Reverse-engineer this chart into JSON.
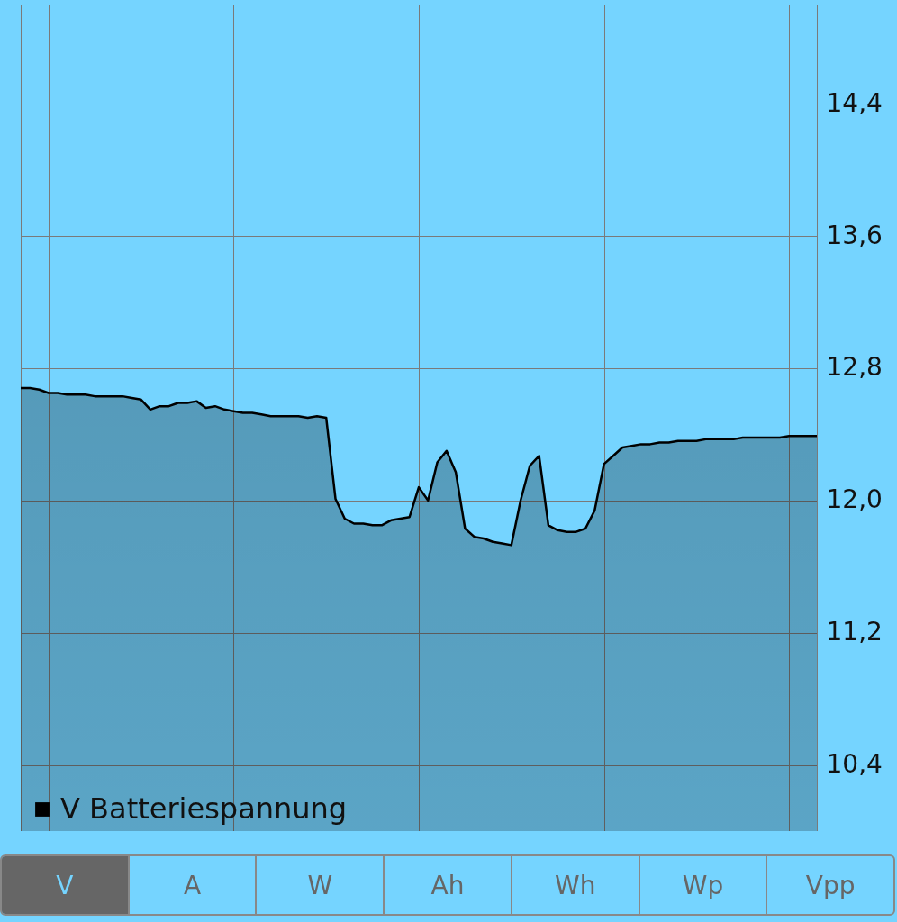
{
  "chart_data": {
    "type": "area",
    "categories": [
      null,
      null,
      null,
      null,
      null,
      null,
      null,
      null,
      null,
      null,
      null,
      null,
      null,
      null,
      null,
      null,
      null,
      null,
      null,
      null,
      null,
      null,
      null,
      null,
      null,
      null,
      null,
      null,
      null,
      null,
      null,
      null,
      null,
      null,
      null,
      null,
      null,
      null,
      null,
      null,
      null,
      null,
      null,
      null,
      null,
      null,
      null,
      null,
      null,
      null,
      null,
      null,
      null,
      null,
      null,
      null,
      null,
      null,
      null,
      null,
      null,
      null,
      null,
      null,
      null,
      null,
      null,
      null,
      null,
      null,
      null,
      null,
      null,
      null,
      null,
      null,
      null,
      null,
      null,
      null,
      null,
      null,
      null,
      null,
      null,
      null,
      null
    ],
    "ylim": [
      10,
      15
    ],
    "yticks": [
      {
        "value": 10.4,
        "label": "10,4"
      },
      {
        "value": 11.2,
        "label": "11,2"
      },
      {
        "value": 12.0,
        "label": "12,0"
      },
      {
        "value": 12.8,
        "label": "12,8"
      },
      {
        "value": 13.6,
        "label": "13,6"
      },
      {
        "value": 14.4,
        "label": "14,4"
      }
    ],
    "grid": true,
    "legend": "bottom left",
    "tick_labels": "y",
    "series": [
      {
        "name": "V Batteriespannung",
        "color": "#000000",
        "values": [
          12.68,
          12.68,
          12.67,
          12.65,
          12.65,
          12.64,
          12.64,
          12.64,
          12.63,
          12.63,
          12.63,
          12.63,
          12.62,
          12.61,
          12.55,
          12.57,
          12.57,
          12.59,
          12.59,
          12.6,
          12.56,
          12.57,
          12.55,
          12.54,
          12.53,
          12.53,
          12.52,
          12.51,
          12.51,
          12.51,
          12.51,
          12.5,
          12.51,
          12.5,
          12.01,
          11.89,
          11.86,
          11.86,
          11.85,
          11.85,
          11.88,
          11.89,
          11.9,
          12.08,
          12.0,
          12.23,
          12.3,
          12.17,
          11.83,
          11.78,
          11.77,
          11.75,
          11.74,
          11.73,
          12.0,
          12.21,
          12.27,
          11.85,
          11.82,
          11.81,
          11.81,
          11.83,
          11.94,
          12.22,
          12.27,
          12.32,
          12.33,
          12.34,
          12.34,
          12.35,
          12.35,
          12.36,
          12.36,
          12.36,
          12.37,
          12.37,
          12.37,
          12.37,
          12.38,
          12.38,
          12.38,
          12.38,
          12.38,
          12.39,
          12.39,
          12.39,
          12.39
        ]
      }
    ],
    "annotations": [
      "V",
      "A",
      "W",
      "Ah",
      "Wh",
      "Wp",
      "Vpp"
    ]
  }
}
